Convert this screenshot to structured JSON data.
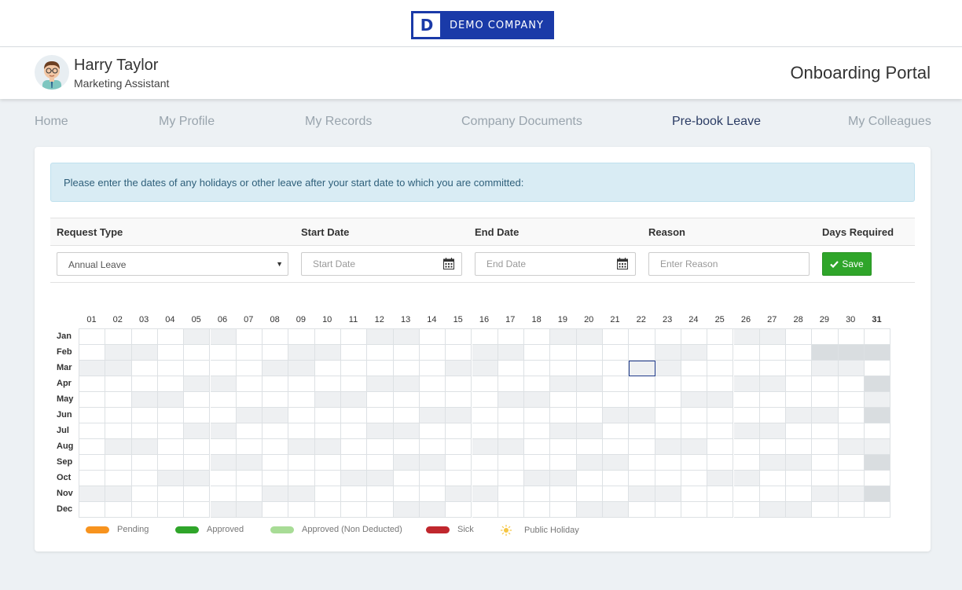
{
  "brand": {
    "logo_letter": "D",
    "logo_text": "DEMO COMPANY",
    "color": "#1a3aa8"
  },
  "user": {
    "name": "Harry Taylor",
    "role": "Marketing Assistant"
  },
  "portal_title": "Onboarding Portal",
  "nav": [
    {
      "label": "Home",
      "active": false
    },
    {
      "label": "My Profile",
      "active": false
    },
    {
      "label": "My Records",
      "active": false
    },
    {
      "label": "Company Documents",
      "active": false
    },
    {
      "label": "Pre-book Leave",
      "active": true
    },
    {
      "label": "My Colleagues",
      "active": false
    }
  ],
  "alert_text": "Please enter the dates of any holidays or other leave after your start date to which you are committed:",
  "form": {
    "headers": {
      "request_type": "Request Type",
      "start_date": "Start Date",
      "end_date": "End Date",
      "reason": "Reason",
      "days_required": "Days Required"
    },
    "request_type_value": "Annual Leave",
    "start_placeholder": "Start Date",
    "end_placeholder": "End Date",
    "reason_placeholder": "Enter Reason",
    "save_label": "Save"
  },
  "calendar": {
    "days": [
      "01",
      "02",
      "03",
      "04",
      "05",
      "06",
      "07",
      "08",
      "09",
      "10",
      "11",
      "12",
      "13",
      "14",
      "15",
      "16",
      "17",
      "18",
      "19",
      "20",
      "21",
      "22",
      "23",
      "24",
      "25",
      "26",
      "27",
      "28",
      "29",
      "30",
      "31"
    ],
    "months": [
      "Jan",
      "Feb",
      "Mar",
      "Apr",
      "May",
      "Jun",
      "Jul",
      "Aug",
      "Sep",
      "Oct",
      "Nov",
      "Dec"
    ],
    "weekend_start_day": [
      5,
      2,
      1,
      5,
      3,
      7,
      5,
      2,
      6,
      4,
      1,
      6
    ],
    "days_in_month": [
      31,
      28,
      31,
      30,
      31,
      30,
      31,
      31,
      30,
      31,
      30,
      31
    ],
    "selected": {
      "month": 3,
      "day": 22
    }
  },
  "legend": [
    {
      "label": "Pending",
      "color": "#f7931e"
    },
    {
      "label": "Approved",
      "color": "#2fa52a"
    },
    {
      "label": "Approved (Non Deducted)",
      "color": "#a8dc96"
    },
    {
      "label": "Sick",
      "color": "#c0272d"
    },
    {
      "label": "Public Holiday",
      "icon": "sun-icon",
      "color": "#f5c542"
    }
  ]
}
